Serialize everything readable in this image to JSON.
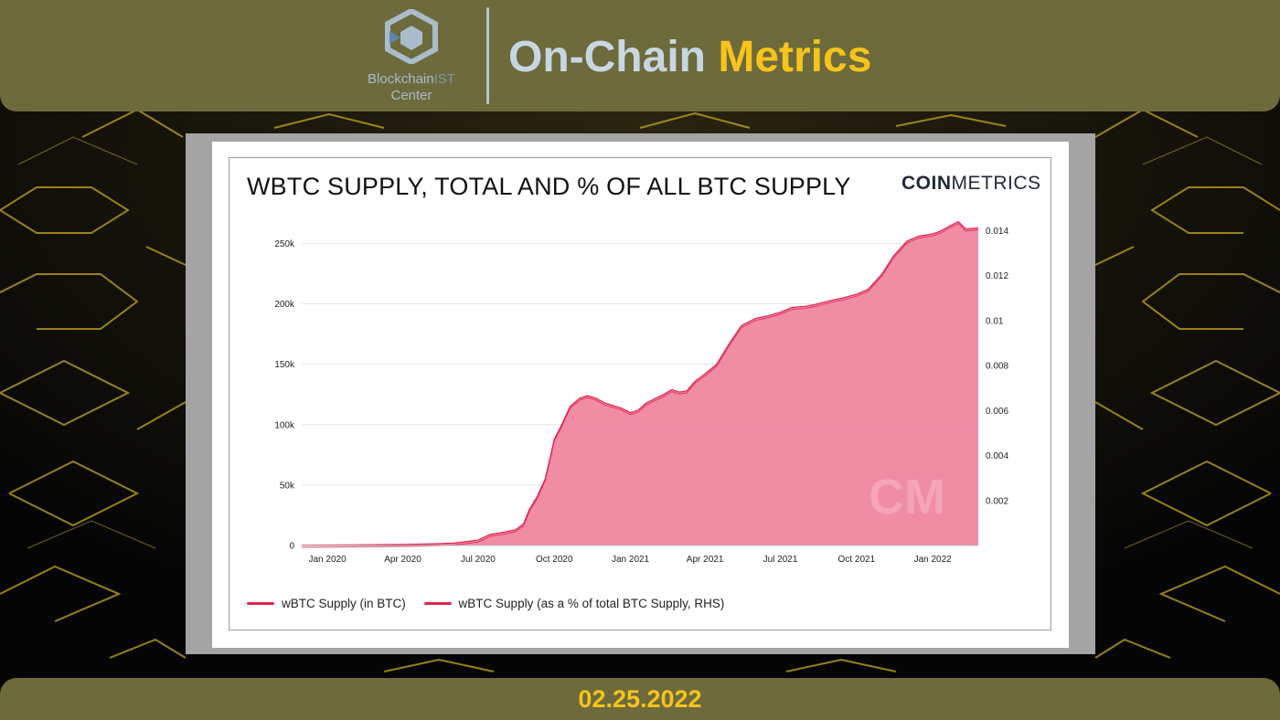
{
  "header": {
    "logo_name_primary": "Blockchain",
    "logo_name_suffix": "IST",
    "logo_sub": "Center",
    "title_part1": "On-Chain",
    "title_part2": "Metrics"
  },
  "card": {
    "brand_bold": "COIN",
    "brand_light": "METRICS",
    "watermark": "CM"
  },
  "footer": {
    "date": "02.25.2022"
  },
  "colors": {
    "header_bar": "#6d6a3c",
    "accent_yellow": "#f6c41b",
    "series_line": "#e0244f",
    "area_fill": "#f07f9b"
  },
  "chart_data": {
    "type": "area",
    "title": "WBTC SUPPLY, TOTAL AND % OF ALL BTC SUPPLY",
    "xlabel": "",
    "ylabel": "",
    "x_ticks": [
      "Jan 2020",
      "Apr 2020",
      "Jul 2020",
      "Oct 2020",
      "Jan 2021",
      "Apr 2021",
      "Jul 2021",
      "Oct 2021",
      "Jan 2022"
    ],
    "y_ticks_left": [
      "0",
      "50k",
      "100k",
      "150k",
      "200k",
      "250k"
    ],
    "y_ticks_right": [
      "0.002",
      "0.004",
      "0.006",
      "0.008",
      "0.01",
      "0.012",
      "0.014"
    ],
    "xlim": [
      "2019-12-01",
      "2022-02-25"
    ],
    "ylim_left": [
      0,
      270000
    ],
    "ylim_right": [
      0,
      0.0145
    ],
    "grid": true,
    "legend_position": "bottom-left",
    "series": [
      {
        "name": "wBTC Supply (in BTC)",
        "axis": "left",
        "dates": [
          "2019-12-01",
          "2020-01-01",
          "2020-02-01",
          "2020-03-01",
          "2020-04-01",
          "2020-05-01",
          "2020-05-15",
          "2020-06-01",
          "2020-06-15",
          "2020-07-01",
          "2020-07-15",
          "2020-08-01",
          "2020-08-15",
          "2020-08-25",
          "2020-09-01",
          "2020-09-10",
          "2020-09-20",
          "2020-10-01",
          "2020-10-10",
          "2020-10-20",
          "2020-11-01",
          "2020-11-10",
          "2020-11-20",
          "2020-12-01",
          "2020-12-10",
          "2020-12-20",
          "2021-01-01",
          "2021-01-10",
          "2021-01-20",
          "2021-02-01",
          "2021-02-10",
          "2021-02-20",
          "2021-03-01",
          "2021-03-10",
          "2021-03-20",
          "2021-04-01",
          "2021-04-15",
          "2021-05-01",
          "2021-05-15",
          "2021-06-01",
          "2021-06-15",
          "2021-07-01",
          "2021-07-15",
          "2021-08-01",
          "2021-08-15",
          "2021-09-01",
          "2021-09-15",
          "2021-10-01",
          "2021-10-15",
          "2021-11-01",
          "2021-11-15",
          "2021-12-01",
          "2021-12-15",
          "2022-01-01",
          "2022-01-10",
          "2022-01-15",
          "2022-01-20",
          "2022-02-01",
          "2022-02-10",
          "2022-02-25"
        ],
        "values": [
          200,
          400,
          500,
          700,
          900,
          1200,
          1500,
          2000,
          3000,
          4500,
          9000,
          11000,
          13000,
          18000,
          30000,
          40000,
          55000,
          88000,
          100000,
          115000,
          122000,
          124000,
          122000,
          118000,
          116000,
          114000,
          110000,
          112000,
          118000,
          122000,
          125000,
          129000,
          127000,
          128000,
          136000,
          142000,
          150000,
          168000,
          182000,
          188000,
          190000,
          193000,
          197000,
          198000,
          200000,
          203000,
          205000,
          208000,
          212000,
          225000,
          240000,
          252000,
          256000,
          258000,
          260000,
          262000,
          264000,
          268000,
          262000,
          263000
        ]
      },
      {
        "name": "wBTC Supply (as a % of total BTC Supply, RHS)",
        "axis": "right"
      }
    ]
  }
}
